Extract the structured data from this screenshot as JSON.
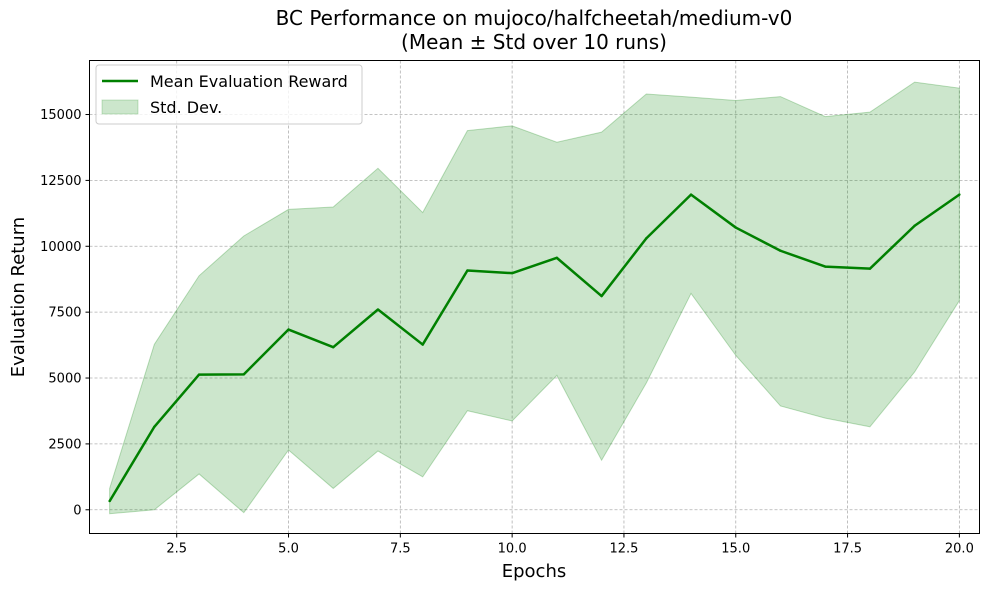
{
  "chart_data": {
    "type": "line",
    "title": "BC Performance on mujoco/halfcheetah/medium-v0",
    "subtitle": "(Mean ± Std over 10 runs)",
    "xlabel": "Epochs",
    "ylabel": "Evaluation Return",
    "xlim": [
      0.55,
      20.45
    ],
    "ylim": [
      -900,
      17050
    ],
    "xticks": [
      2.5,
      5.0,
      7.5,
      10.0,
      12.5,
      15.0,
      17.5,
      20.0
    ],
    "xtick_labels": [
      "2.5",
      "5.0",
      "7.5",
      "10.0",
      "12.5",
      "15.0",
      "17.5",
      "20.0"
    ],
    "yticks": [
      0,
      2500,
      5000,
      7500,
      10000,
      12500,
      15000
    ],
    "ytick_labels": [
      "0",
      "2500",
      "5000",
      "7500",
      "10000",
      "12500",
      "15000"
    ],
    "grid": true,
    "legend_position": "top-left",
    "x": [
      1,
      2,
      3,
      4,
      5,
      6,
      7,
      8,
      9,
      10,
      11,
      12,
      13,
      14,
      15,
      16,
      17,
      18,
      19,
      20
    ],
    "series": [
      {
        "name": "Mean Evaluation Reward",
        "color": "#008000",
        "values": [
          330,
          3150,
          5130,
          5140,
          6840,
          6170,
          7600,
          6270,
          9080,
          8980,
          9560,
          8110,
          10300,
          11960,
          10710,
          9830,
          9230,
          9150,
          10780,
          11960
        ]
      }
    ],
    "band": {
      "name": "Std. Dev.",
      "color": "#008000",
      "opacity": 0.2,
      "lower": [
        -150,
        0,
        1360,
        -110,
        2270,
        810,
        2230,
        1250,
        3760,
        3370,
        5100,
        1880,
        4810,
        8210,
        5860,
        3940,
        3480,
        3150,
        5230,
        7940
      ],
      "upper": [
        810,
        6280,
        8880,
        10390,
        11400,
        11490,
        12960,
        11280,
        14390,
        14570,
        13950,
        14330,
        15780,
        15660,
        15530,
        15680,
        14920,
        15090,
        16230,
        16000
      ]
    }
  }
}
